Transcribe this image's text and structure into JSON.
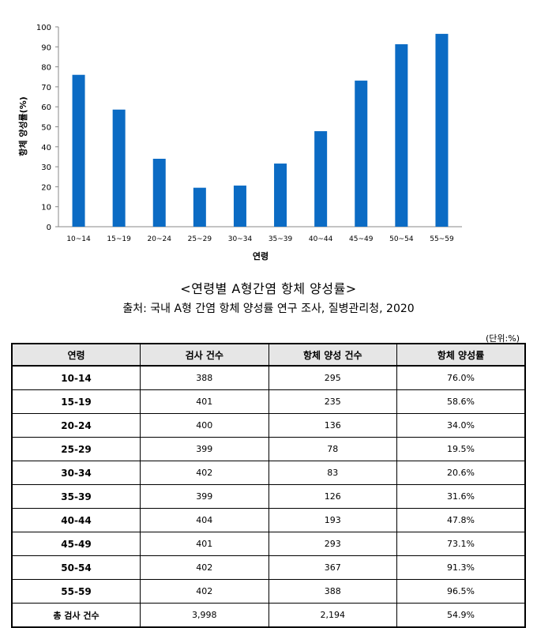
{
  "chart_data": {
    "type": "bar",
    "title": "",
    "xlabel": "연령",
    "ylabel": "항체 양성률(%)",
    "ylim": [
      0,
      100
    ],
    "yticks": [
      "0",
      "10",
      "20",
      "30",
      "40",
      "50",
      "60",
      "70",
      "80",
      "90",
      "100"
    ],
    "categories": [
      "10~14",
      "15~19",
      "20~24",
      "25~29",
      "30~34",
      "35~39",
      "40~44",
      "45~49",
      "50~54",
      "55~59"
    ],
    "values": [
      76.0,
      58.6,
      34.0,
      19.5,
      20.6,
      31.6,
      47.8,
      73.1,
      91.3,
      96.5
    ],
    "bar_color": "#0b6bc4",
    "grid": false
  },
  "caption": {
    "title": "<연령별 A형간염 항체 양성률>",
    "source": "출처: 국내 A형 간염 항체 양성률 연구 조사, 질병관리청, 2020"
  },
  "table": {
    "unit_note": "(단위:%)",
    "headers": [
      "연령",
      "검사 건수",
      "항체 양성 건수",
      "항체 양성률"
    ],
    "rows": [
      [
        "10-14",
        "388",
        "295",
        "76.0%"
      ],
      [
        "15-19",
        "401",
        "235",
        "58.6%"
      ],
      [
        "20-24",
        "400",
        "136",
        "34.0%"
      ],
      [
        "25-29",
        "399",
        "78",
        "19.5%"
      ],
      [
        "30-34",
        "402",
        "83",
        "20.6%"
      ],
      [
        "35-39",
        "399",
        "126",
        "31.6%"
      ],
      [
        "40-44",
        "404",
        "193",
        "47.8%"
      ],
      [
        "45-49",
        "401",
        "293",
        "73.1%"
      ],
      [
        "50-54",
        "402",
        "367",
        "91.3%"
      ],
      [
        "55-59",
        "402",
        "388",
        "96.5%"
      ]
    ],
    "total": [
      "총 검사 건수",
      "3,998",
      "2,194",
      "54.9%"
    ]
  }
}
